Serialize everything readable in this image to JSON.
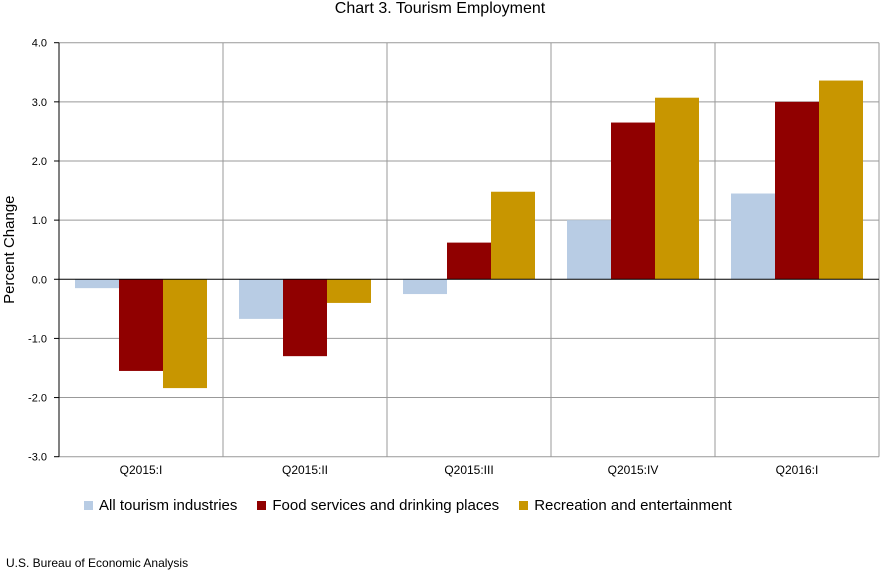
{
  "chart_data": {
    "type": "bar",
    "title": "Chart 3. Tourism Employment",
    "xlabel": "",
    "ylabel": "Percent Change",
    "ylim": [
      -3.0,
      4.0
    ],
    "yticks": [
      "4.0",
      "3.0",
      "2.0",
      "1.0",
      "0.0",
      "-1.0",
      "-2.0",
      "-3.0"
    ],
    "grid": true,
    "legend": "bottom",
    "categories": [
      "Q2015:I",
      "Q2015:II",
      "Q2015:III",
      "Q2015:IV",
      "Q2016:I"
    ],
    "series": [
      {
        "name": "All tourism industries",
        "color": "#b8cce4",
        "values": [
          -0.15,
          -0.67,
          -0.25,
          1.0,
          1.45
        ]
      },
      {
        "name": "Food services and drinking places",
        "color": "#900000",
        "values": [
          -1.55,
          -1.3,
          0.62,
          2.65,
          3.0
        ]
      },
      {
        "name": "Recreation and entertainment",
        "color": "#c89600",
        "values": [
          -1.84,
          -0.4,
          1.48,
          3.07,
          3.36
        ]
      }
    ]
  },
  "source": "U.S. Bureau of Economic Analysis"
}
